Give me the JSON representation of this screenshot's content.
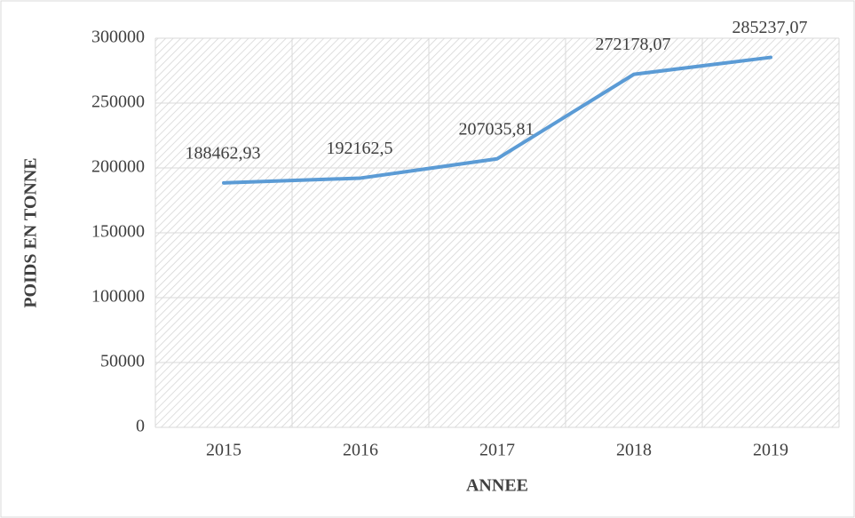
{
  "chart_data": {
    "type": "line",
    "x_label": "ANNEE",
    "y_label": "POIDS EN TONNE",
    "categories": [
      "2015",
      "2016",
      "2017",
      "2018",
      "2019"
    ],
    "series": [
      {
        "name": "POIDS EN TONNE",
        "color": "#5b9bd5",
        "values": [
          188462.93,
          192162.5,
          207035.81,
          272178.07,
          285237.07
        ],
        "value_labels": [
          "188462,93",
          "192162,5",
          "207035,81",
          "272178,07",
          "285237,07"
        ]
      }
    ],
    "ylim": [
      0,
      300000
    ],
    "yticks": [
      0,
      50000,
      100000,
      150000,
      200000,
      250000,
      300000
    ],
    "grid": true
  }
}
